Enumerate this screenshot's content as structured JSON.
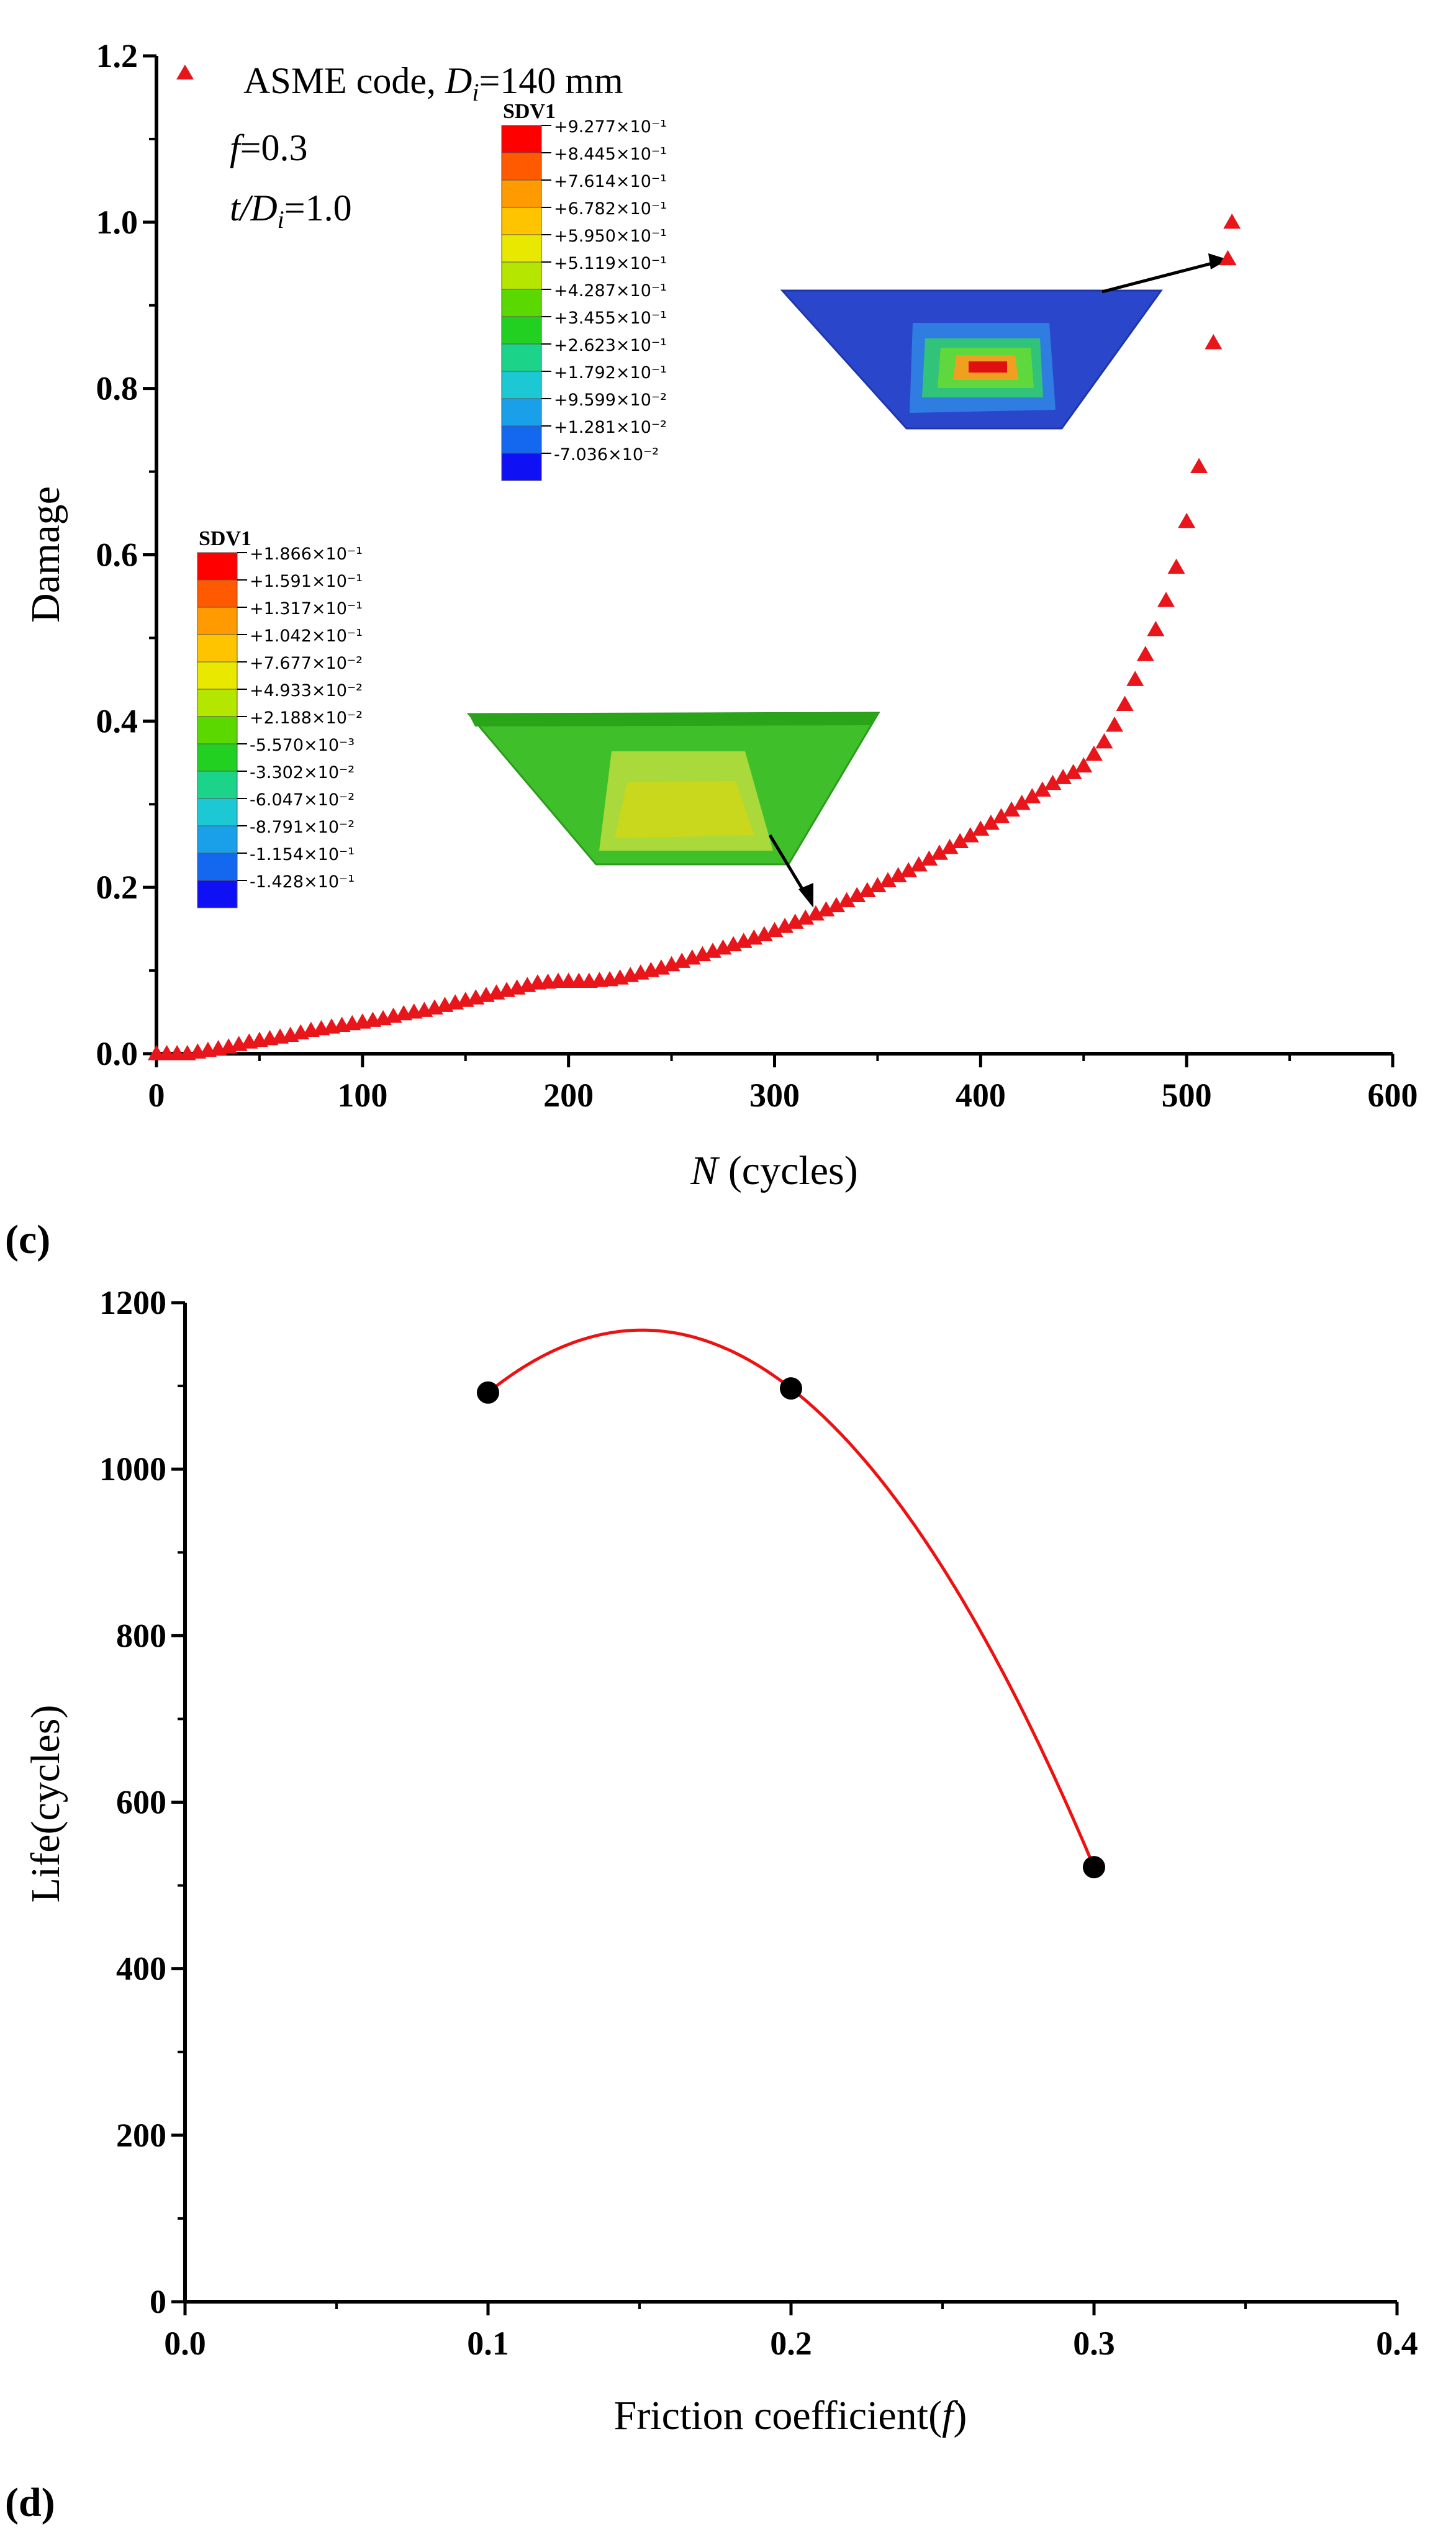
{
  "chart_data": [
    {
      "type": "scatter",
      "panel_label": "(c)",
      "xlabel_var": "N",
      "xlabel_rest": " (cycles)",
      "ylabel": "Damage",
      "xlim": [
        0,
        600
      ],
      "ylim": [
        0,
        1.2
      ],
      "xticks": [
        "0",
        "100",
        "200",
        "300",
        "400",
        "500",
        "600"
      ],
      "yticks": [
        "0.0",
        "0.2",
        "0.4",
        "0.6",
        "0.8",
        "1.0",
        "1.2"
      ],
      "legend": {
        "line1_prefix": "ASME code, ",
        "line1_var": "D",
        "line1_sub": "i",
        "line1_suffix": "=140 mm",
        "line2_var": "f",
        "line2_suffix": "=0.3",
        "line3_var": "t/D",
        "line3_sub": "i",
        "line3_suffix": "=1.0"
      },
      "series": [
        {
          "name": "ASME code, Di=140 mm",
          "color": "#e8151b",
          "marker": "triangle",
          "x": [
            0,
            5,
            10,
            15,
            20,
            25,
            30,
            35,
            40,
            45,
            50,
            55,
            60,
            65,
            70,
            75,
            80,
            85,
            90,
            95,
            100,
            105,
            110,
            115,
            120,
            125,
            130,
            135,
            140,
            145,
            150,
            155,
            160,
            165,
            170,
            175,
            180,
            185,
            190,
            195,
            200,
            205,
            210,
            215,
            220,
            225,
            230,
            235,
            240,
            245,
            250,
            255,
            260,
            265,
            270,
            275,
            280,
            285,
            290,
            295,
            300,
            305,
            310,
            315,
            320,
            325,
            330,
            335,
            340,
            345,
            350,
            355,
            360,
            365,
            370,
            375,
            380,
            385,
            390,
            395,
            400,
            405,
            410,
            415,
            420,
            425,
            430,
            435,
            440,
            445,
            450,
            455,
            460,
            465,
            470,
            475,
            480,
            485,
            490,
            495,
            500,
            506,
            513,
            520,
            522
          ],
          "y": [
            0,
            0,
            0,
            0,
            0.002,
            0.004,
            0.006,
            0.008,
            0.011,
            0.014,
            0.016,
            0.018,
            0.02,
            0.022,
            0.025,
            0.028,
            0.03,
            0.032,
            0.034,
            0.036,
            0.038,
            0.04,
            0.042,
            0.045,
            0.048,
            0.05,
            0.052,
            0.055,
            0.058,
            0.061,
            0.064,
            0.067,
            0.07,
            0.073,
            0.076,
            0.079,
            0.082,
            0.085,
            0.086,
            0.087,
            0.087,
            0.087,
            0.087,
            0.088,
            0.089,
            0.091,
            0.094,
            0.097,
            0.1,
            0.103,
            0.107,
            0.111,
            0.115,
            0.119,
            0.123,
            0.127,
            0.131,
            0.135,
            0.139,
            0.143,
            0.148,
            0.153,
            0.158,
            0.163,
            0.168,
            0.173,
            0.178,
            0.184,
            0.19,
            0.196,
            0.202,
            0.208,
            0.214,
            0.22,
            0.227,
            0.234,
            0.241,
            0.248,
            0.255,
            0.262,
            0.27,
            0.277,
            0.285,
            0.293,
            0.301,
            0.309,
            0.317,
            0.325,
            0.332,
            0.338,
            0.346,
            0.36,
            0.375,
            0.395,
            0.42,
            0.45,
            0.48,
            0.51,
            0.545,
            0.585,
            0.64,
            0.706,
            0.855,
            0.956,
            1.0
          ]
        }
      ],
      "contour_legends": [
        {
          "title": "SDV1",
          "colors": [
            "#ff0000",
            "#ff5a00",
            "#ff9a00",
            "#ffc400",
            "#e8e800",
            "#b4e600",
            "#5ad800",
            "#22d022",
            "#1cd38a",
            "#1cc8d3",
            "#1aa0e8",
            "#1468f0",
            "#1010f5"
          ],
          "values": [
            "+1.866×10⁻¹",
            "+1.591×10⁻¹",
            "+1.317×10⁻¹",
            "+1.042×10⁻¹",
            "+7.677×10⁻²",
            "+4.933×10⁻²",
            "+2.188×10⁻²",
            "-5.570×10⁻³",
            "-3.302×10⁻²",
            "-6.047×10⁻²",
            "-8.791×10⁻²",
            "-1.154×10⁻¹",
            "-1.428×10⁻¹"
          ]
        },
        {
          "title": "SDV1",
          "colors": [
            "#ff0000",
            "#ff5a00",
            "#ff9a00",
            "#ffc400",
            "#e8e800",
            "#b4e600",
            "#5ad800",
            "#22d022",
            "#1cd38a",
            "#1cc8d3",
            "#1aa0e8",
            "#1468f0",
            "#1010f5"
          ],
          "values": [
            "+9.277×10⁻¹",
            "+8.445×10⁻¹",
            "+7.614×10⁻¹",
            "+6.782×10⁻¹",
            "+5.950×10⁻¹",
            "+5.119×10⁻¹",
            "+4.287×10⁻¹",
            "+3.455×10⁻¹",
            "+2.623×10⁻¹",
            "+1.792×10⁻¹",
            "+9.599×10⁻²",
            "+1.281×10⁻²",
            "-7.036×10⁻²"
          ]
        }
      ]
    },
    {
      "type": "line",
      "panel_label": "(d)",
      "xlabel_text": "Friction coefficient(",
      "xlabel_var": "f",
      "xlabel_close": ")",
      "ylabel": "Life(cycles)",
      "xlim": [
        0,
        0.4
      ],
      "ylim": [
        0,
        1200
      ],
      "xticks": [
        "0.0",
        "0.1",
        "0.2",
        "0.3",
        "0.4"
      ],
      "yticks": [
        "0",
        "200",
        "400",
        "600",
        "800",
        "1000",
        "1200"
      ],
      "series": [
        {
          "name": "Life",
          "marker_color": "#000000",
          "line_color": "#ee1111",
          "x": [
            0.1,
            0.2,
            0.3
          ],
          "y": [
            1092,
            1097,
            522
          ]
        }
      ]
    }
  ]
}
